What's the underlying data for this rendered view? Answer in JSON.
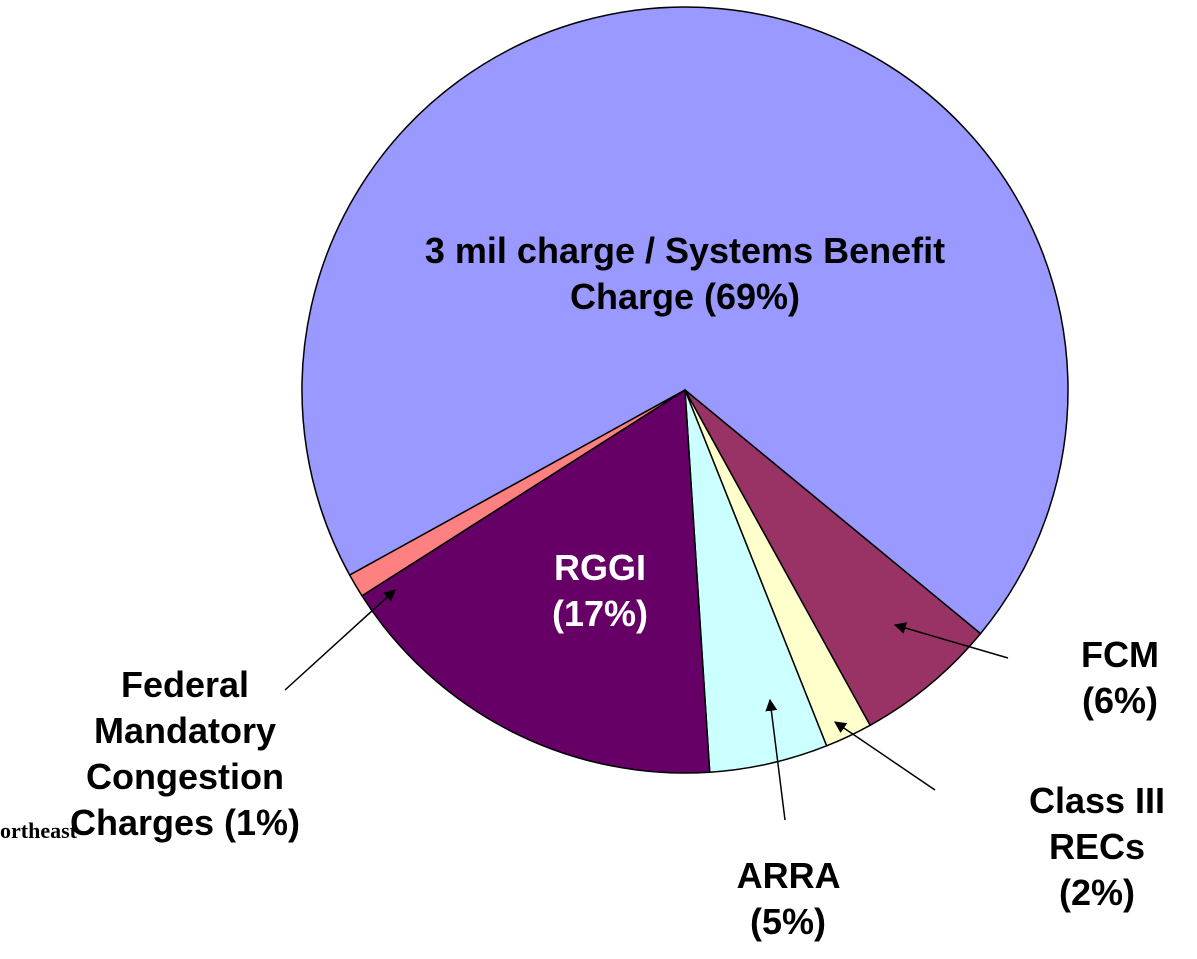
{
  "chart_data": {
    "type": "pie",
    "categories": [
      "3 mil charge / Systems Benefit Charge",
      "FCM",
      "Class III RECs",
      "ARRA",
      "RGGI",
      "Federal Mandatory Congestion Charges"
    ],
    "values": [
      69,
      6,
      2,
      5,
      17,
      1
    ],
    "value_labels": [
      "(69%)",
      "(6%)",
      "(2%)",
      "(5%)",
      "(17%)",
      "(1%)"
    ],
    "colors": [
      "#9999ff",
      "#993366",
      "#ffffcc",
      "#ccffff",
      "#660066",
      "#ff8080"
    ]
  },
  "logo_text": "ortheast"
}
